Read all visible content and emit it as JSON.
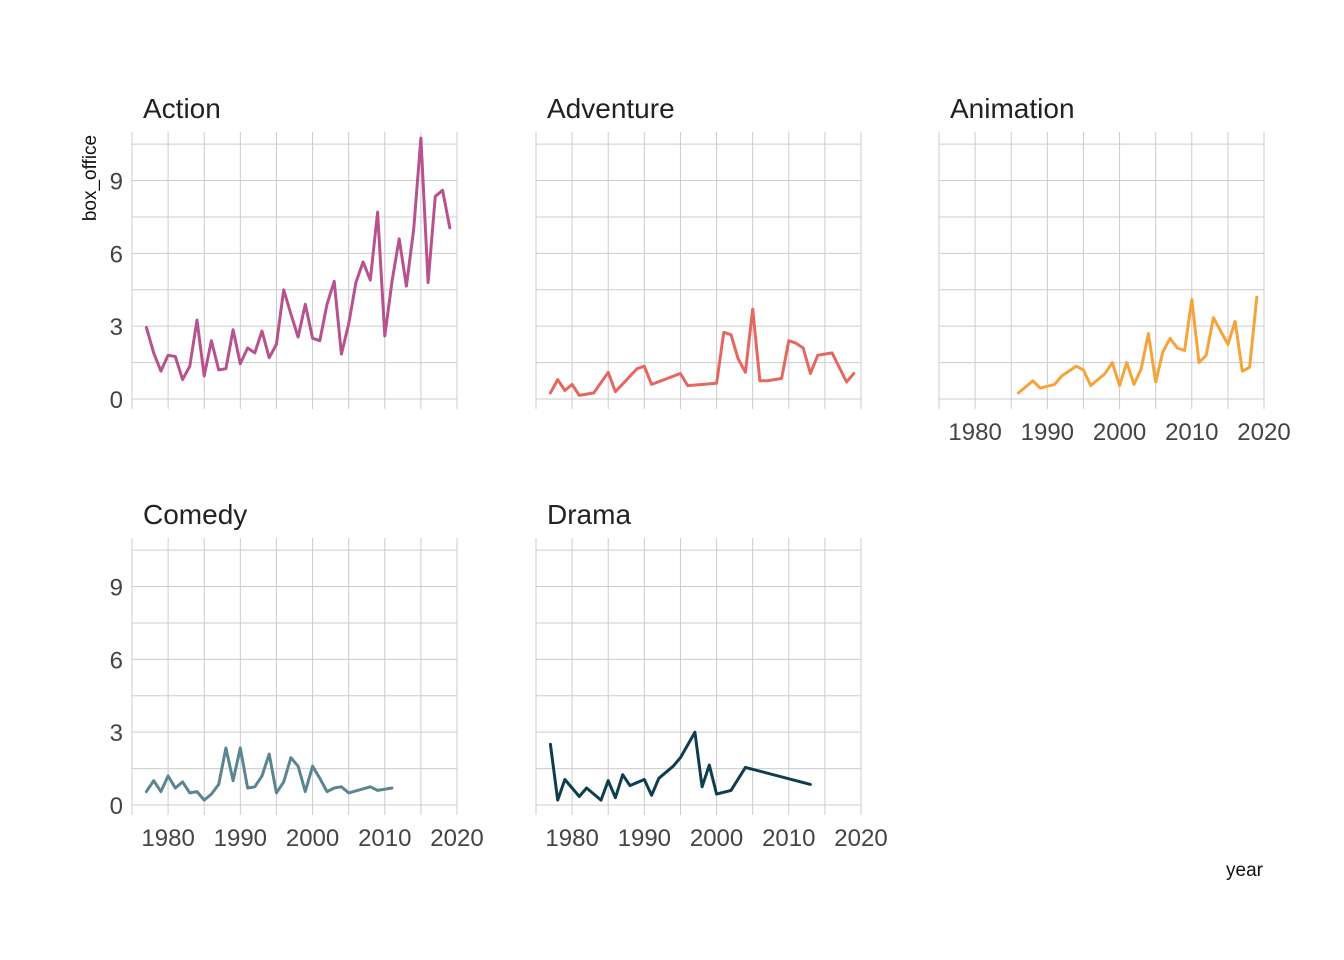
{
  "chart_data": {
    "type": "line",
    "xlabel": "year",
    "ylabel": "box_office",
    "xlim": [
      1975,
      2020
    ],
    "ylim": [
      0,
      11
    ],
    "x_ticks": [
      1980,
      1990,
      2000,
      2010,
      2020
    ],
    "y_ticks": [
      0,
      3,
      6,
      9
    ],
    "grid": true,
    "facets": [
      {
        "name": "Action",
        "color": "#B8528F",
        "x": [
          1977,
          1978,
          1979,
          1980,
          1981,
          1982,
          1983,
          1984,
          1985,
          1986,
          1987,
          1988,
          1989,
          1990,
          1991,
          1992,
          1993,
          1994,
          1995,
          1996,
          1997,
          1998,
          1999,
          2000,
          2001,
          2002,
          2003,
          2004,
          2005,
          2006,
          2007,
          2008,
          2009,
          2010,
          2011,
          2012,
          2013,
          2014,
          2015,
          2016,
          2017,
          2018,
          2019
        ],
        "y": [
          2.95,
          1.9,
          1.15,
          1.8,
          1.75,
          0.8,
          1.35,
          3.25,
          0.95,
          2.4,
          1.2,
          1.25,
          2.85,
          1.45,
          2.1,
          1.9,
          2.8,
          1.7,
          2.25,
          4.5,
          3.5,
          2.55,
          3.9,
          2.5,
          2.4,
          3.9,
          4.85,
          1.85,
          3.1,
          4.8,
          5.65,
          4.9,
          7.7,
          2.6,
          4.85,
          6.6,
          4.65,
          7.0,
          10.75,
          4.8,
          8.35,
          8.6,
          7.05
        ]
      },
      {
        "name": "Adventure",
        "color": "#E4685F",
        "x": [
          1977,
          1978,
          1979,
          1980,
          1981,
          1983,
          1985,
          1986,
          1989,
          1990,
          1991,
          1995,
          1996,
          2000,
          2001,
          2002,
          2003,
          2004,
          2005,
          2006,
          2007,
          2008,
          2009,
          2010,
          2011,
          2012,
          2013,
          2014,
          2016,
          2018,
          2019
        ],
        "y": [
          0.25,
          0.8,
          0.35,
          0.6,
          0.15,
          0.25,
          1.1,
          0.3,
          1.25,
          1.35,
          0.6,
          1.05,
          0.55,
          0.65,
          2.75,
          2.65,
          1.65,
          1.1,
          3.7,
          0.75,
          0.75,
          0.8,
          0.85,
          2.4,
          2.3,
          2.1,
          1.05,
          1.8,
          1.9,
          0.7,
          1.05
        ]
      },
      {
        "name": "Animation",
        "color": "#F4A43A",
        "x": [
          1986,
          1988,
          1989,
          1991,
          1992,
          1994,
          1995,
          1996,
          1998,
          1999,
          2000,
          2001,
          2002,
          2003,
          2004,
          2005,
          2006,
          2007,
          2008,
          2009,
          2010,
          2011,
          2012,
          2013,
          2015,
          2016,
          2017,
          2018,
          2019
        ],
        "y": [
          0.25,
          0.75,
          0.45,
          0.6,
          0.95,
          1.35,
          1.2,
          0.55,
          1.05,
          1.5,
          0.55,
          1.5,
          0.6,
          1.25,
          2.7,
          0.7,
          1.95,
          2.5,
          2.1,
          2.0,
          4.1,
          1.5,
          1.8,
          3.35,
          2.25,
          3.2,
          1.15,
          1.3,
          4.2
        ]
      },
      {
        "name": "Comedy",
        "color": "#5A8591",
        "x": [
          1977,
          1978,
          1979,
          1980,
          1981,
          1982,
          1983,
          1984,
          1985,
          1986,
          1987,
          1988,
          1989,
          1990,
          1991,
          1992,
          1993,
          1994,
          1995,
          1996,
          1997,
          1998,
          1999,
          2000,
          2001,
          2002,
          2003,
          2004,
          2005,
          2008,
          2009,
          2011
        ],
        "y": [
          0.55,
          1.0,
          0.55,
          1.2,
          0.7,
          0.95,
          0.5,
          0.55,
          0.2,
          0.45,
          0.85,
          2.35,
          1.0,
          2.35,
          0.7,
          0.75,
          1.2,
          2.1,
          0.5,
          0.95,
          1.95,
          1.6,
          0.55,
          1.6,
          1.1,
          0.55,
          0.7,
          0.75,
          0.5,
          0.75,
          0.6,
          0.7
        ]
      },
      {
        "name": "Drama",
        "color": "#0E3E4E",
        "x": [
          1977,
          1978,
          1979,
          1981,
          1982,
          1984,
          1985,
          1986,
          1987,
          1988,
          1990,
          1991,
          1992,
          1994,
          1995,
          1997,
          1998,
          1999,
          2000,
          2002,
          2004,
          2013
        ],
        "y": [
          2.5,
          0.2,
          1.05,
          0.35,
          0.7,
          0.2,
          1.0,
          0.3,
          1.25,
          0.8,
          1.05,
          0.4,
          1.1,
          1.6,
          1.95,
          3.0,
          0.75,
          1.65,
          0.45,
          0.6,
          1.55,
          0.85
        ]
      }
    ]
  }
}
